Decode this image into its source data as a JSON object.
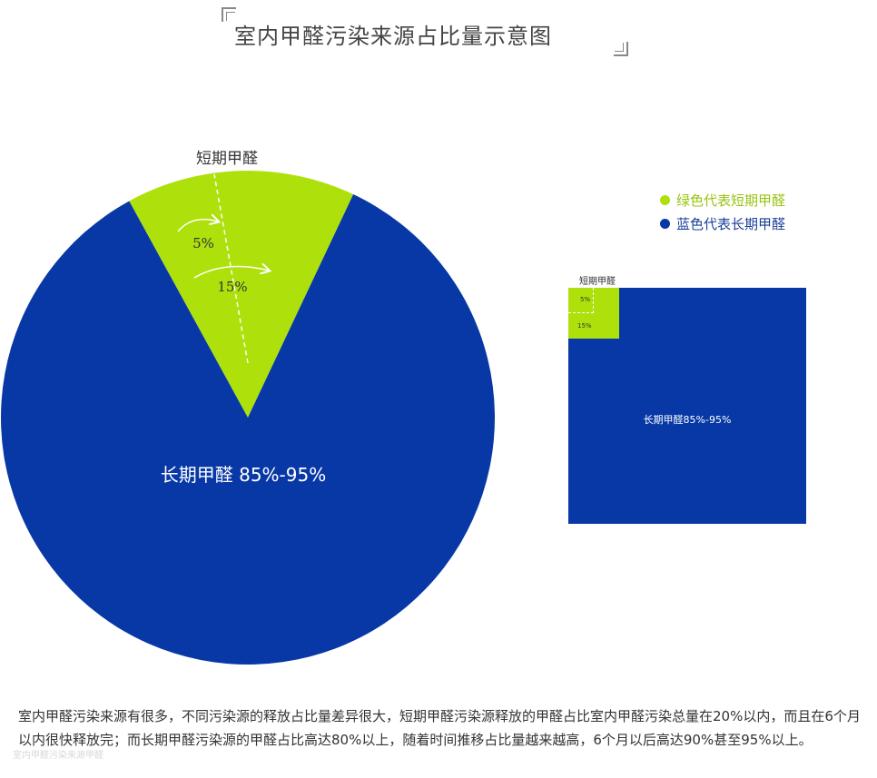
{
  "title": "室内甲醛污染来源占比量示意图",
  "chart_data": [
    {
      "type": "pie",
      "slices": [
        {
          "name": "短期甲醛",
          "value": 15,
          "color": "#aee00c"
        },
        {
          "name": "长期甲醛",
          "value": 85,
          "color": "#0838a6"
        }
      ],
      "labels": {
        "short": "短期甲醛",
        "short_inner": "5%",
        "short_outer": "15%",
        "long": "长期甲醛 85%-95%"
      }
    },
    {
      "type": "area",
      "labels": {
        "short": "短期甲醛",
        "short_inner": "5%",
        "short_outer": "15%",
        "long": "长期甲醛85%-95%"
      }
    }
  ],
  "legend": [
    {
      "label": "绿色代表短期甲醛",
      "color": "#aee00c",
      "text_color": "#97c40f"
    },
    {
      "label": "蓝色代表长期甲醛",
      "color": "#0838a6",
      "text_color": "#1b3f9a"
    }
  ],
  "description": "室内甲醛污染来源有很多，不同污染源的释放占比量差异很大，短期甲醛污染源释放的甲醛占比室内甲醛污染总量在20%以内，而且在6个月以内很快释放完；而长期甲醛污染源的甲醛占比高达80%以上，随着时间推移占比量越来越高，6个月以后高达90%甚至95%以上。",
  "watermark": "室内甲醛污染来源甲醛"
}
